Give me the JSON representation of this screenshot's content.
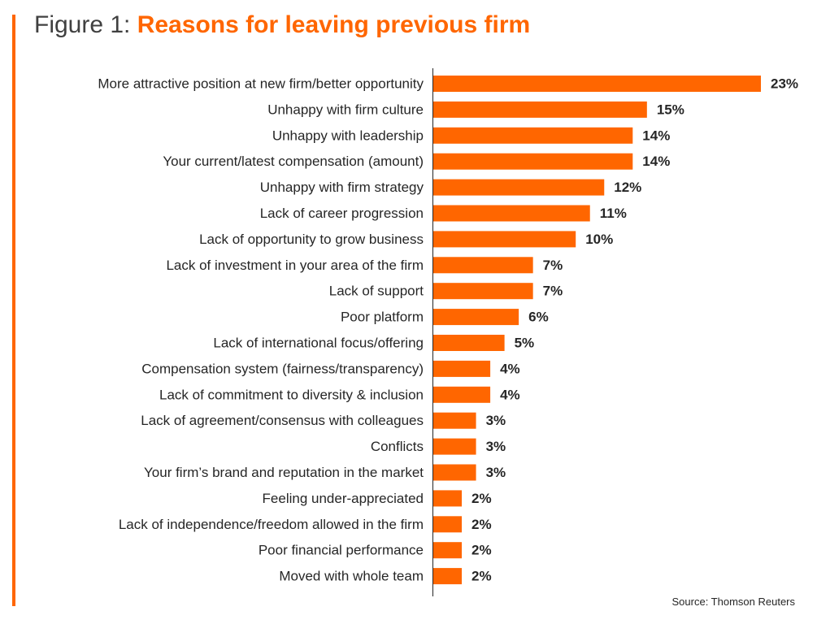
{
  "figure": {
    "prefix": "Figure 1: ",
    "title": "Reasons for leaving previous firm",
    "source": "Source: Thomson Reuters"
  },
  "colors": {
    "accent": "#ff6600",
    "text": "#262626",
    "axis": "#262626"
  },
  "chart_data": {
    "type": "bar",
    "orientation": "horizontal",
    "categories": [
      "More attractive position at new firm/better opportunity",
      "Unhappy with firm culture",
      "Unhappy with leadership",
      "Your current/latest compensation (amount)",
      "Unhappy with firm strategy",
      "Lack of career progression",
      "Lack of opportunity to grow business",
      "Lack of investment in your area of the firm",
      "Lack of support",
      "Poor platform",
      "Lack of international focus/offering",
      "Compensation system (fairness/transparency)",
      "Lack of commitment to diversity & inclusion",
      "Lack of agreement/consensus with colleagues",
      "Conflicts",
      "Your firm’s brand and reputation in the market",
      "Feeling under-appreciated",
      "Lack of independence/freedom allowed in the firm",
      "Poor financial performance",
      "Moved with whole team"
    ],
    "values": [
      23,
      15,
      14,
      14,
      12,
      11,
      10,
      7,
      7,
      6,
      5,
      4,
      4,
      3,
      3,
      3,
      2,
      2,
      2,
      2
    ],
    "value_labels": [
      "23%",
      "15%",
      "14%",
      "14%",
      "12%",
      "11%",
      "10%",
      "7%",
      "7%",
      "6%",
      "5%",
      "4%",
      "4%",
      "3%",
      "3%",
      "3%",
      "2%",
      "2%",
      "2%",
      "2%"
    ],
    "value_unit": "%",
    "xlim": [
      0,
      23
    ],
    "grid": false,
    "legend": "none"
  }
}
